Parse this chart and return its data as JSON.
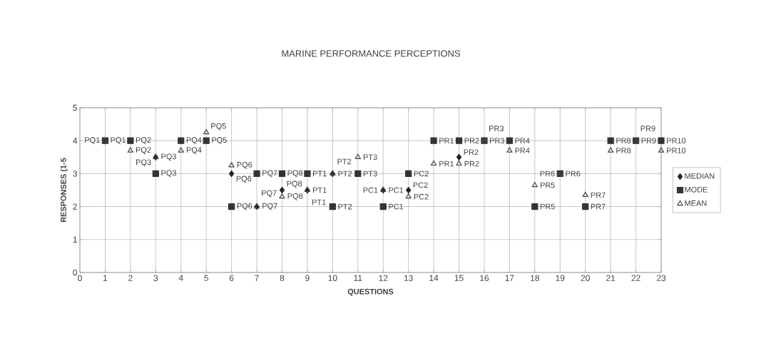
{
  "chart_data": {
    "type": "scatter",
    "title": "MARINE PERFORMANCE PERCEPTIONS",
    "xlabel": "QUESTIONS",
    "ylabel": "RESPONSES (1-5",
    "x": [
      1,
      2,
      3,
      4,
      5,
      6,
      7,
      8,
      9,
      10,
      11,
      12,
      13,
      14,
      15,
      16,
      17,
      18,
      19,
      20,
      21,
      22,
      23
    ],
    "xlim": [
      0,
      23
    ],
    "ylim": [
      0,
      5
    ],
    "xticks": [
      0,
      1,
      2,
      3,
      4,
      5,
      6,
      7,
      8,
      9,
      10,
      11,
      12,
      13,
      14,
      15,
      16,
      17,
      18,
      19,
      20,
      21,
      22,
      23
    ],
    "yticks": [
      0,
      1,
      2,
      3,
      4,
      5
    ],
    "grid": true,
    "legend": "right",
    "series": [
      {
        "name": "MEDIAN",
        "color": "#222222",
        "marker": "diamond",
        "values": [
          null,
          null,
          3.5,
          null,
          null,
          3,
          2,
          2.5,
          2.5,
          3,
          null,
          2.5,
          2.5,
          null,
          3.5,
          null,
          null,
          null,
          null,
          null,
          null,
          null,
          null
        ],
        "value_labels": [
          null,
          null,
          "PQ3",
          null,
          null,
          "PQ6",
          "PQ7",
          "PQ8",
          "PT1",
          "PT2",
          null,
          "PC1",
          "PC2",
          null,
          "PR2",
          null,
          null,
          null,
          null,
          null,
          null,
          null,
          null
        ]
      },
      {
        "name": "MODE",
        "color": "#333333",
        "marker": "square",
        "values": [
          4,
          4,
          3,
          4,
          4,
          2,
          3,
          3,
          3,
          2,
          3,
          2,
          3,
          4,
          4,
          4,
          4,
          2,
          3,
          2,
          4,
          4,
          4
        ],
        "value_labels": [
          "PQ1",
          "PQ2",
          "PQ3",
          "PQ4",
          "PQ5",
          "PQ6",
          "PQ7",
          "PQ8",
          "PT1",
          "PT2",
          "PT3",
          "PC1",
          "PC2",
          "PR1",
          "PR2",
          "PR3",
          "PR4",
          "PR5",
          "PR6",
          "PR7",
          "PR8",
          "PR9",
          "PR10"
        ]
      },
      {
        "name": "MEAN",
        "color": "#444444",
        "marker": "triangle",
        "values": [
          4,
          3.7,
          3.5,
          3.7,
          4.25,
          3.25,
          2,
          2.3,
          2.5,
          3,
          3.5,
          2.5,
          2.3,
          3.3,
          3.3,
          4,
          3.7,
          2.65,
          3,
          2.35,
          3.7,
          4,
          3.7
        ],
        "value_labels": [
          "PQ1",
          "PQ2",
          "PQ3",
          "PQ4",
          "PQ5",
          "PQ6",
          "PQ7",
          "PQ8",
          "PT1",
          "PT2",
          "PT3",
          "PC1",
          "PC2",
          "PR1",
          "PR2",
          "PR3",
          "PR4",
          "PR5",
          "PR6",
          "PR7",
          "PR8",
          "PR9",
          "PR10"
        ]
      }
    ]
  }
}
